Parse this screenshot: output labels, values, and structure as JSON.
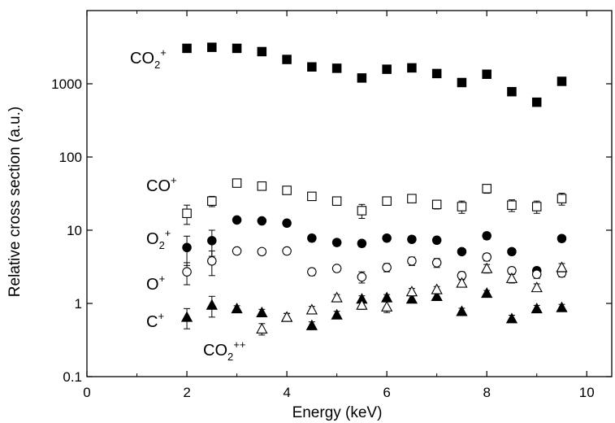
{
  "chart_data": {
    "type": "scatter",
    "xlabel": "Energy (keV)",
    "ylabel": "Relative cross section (a.u.)",
    "xlim": [
      0,
      10.5
    ],
    "ylim": [
      0.1,
      10000
    ],
    "yscale": "log",
    "grid": false,
    "x_ticks": [
      0,
      2,
      4,
      6,
      8,
      10
    ],
    "y_ticks": [
      0.1,
      1,
      10,
      100,
      1000
    ],
    "x_tick_labels": [
      "0",
      "2",
      "4",
      "6",
      "8",
      "10"
    ],
    "y_tick_labels": [
      "0.1",
      "1",
      "10",
      "100",
      "1000"
    ],
    "series": [
      {
        "id": "co2p",
        "marker": "square",
        "filled": true,
        "color": "#000000",
        "label_base": "CO",
        "label_sub": "2",
        "label_sup": "+",
        "x": [
          2,
          2.5,
          3,
          3.5,
          4,
          4.5,
          5,
          5.5,
          6,
          6.5,
          7,
          7.5,
          8,
          8.5,
          9,
          9.5
        ],
        "y": [
          3050,
          3150,
          3050,
          2750,
          2150,
          1700,
          1630,
          1200,
          1580,
          1650,
          1380,
          1040,
          1350,
          780,
          560,
          1080
        ],
        "err": [
          0,
          0,
          0,
          0,
          0,
          0,
          0,
          0,
          0,
          0,
          0,
          0,
          0,
          0,
          0,
          0
        ]
      },
      {
        "id": "cop",
        "marker": "square",
        "filled": false,
        "color": "#000000",
        "label_base": "CO",
        "label_sub": "",
        "label_sup": "+",
        "x": [
          2,
          2.5,
          3,
          3.5,
          4,
          4.5,
          5,
          5.5,
          6,
          6.5,
          7,
          7.5,
          8,
          8.5,
          9,
          9.5
        ],
        "y": [
          17,
          25,
          44,
          40,
          35,
          29,
          25,
          18.5,
          25,
          27,
          22.5,
          21,
          37,
          22,
          21,
          27
        ],
        "err": [
          5,
          4,
          4,
          3,
          4,
          3,
          3,
          4,
          3,
          3,
          3,
          4,
          5,
          4,
          4,
          5
        ]
      },
      {
        "id": "o2p",
        "marker": "circle",
        "filled": true,
        "color": "#000000",
        "label_base": "O",
        "label_sub": "2",
        "label_sup": "+",
        "x": [
          2,
          2.5,
          3,
          3.5,
          4,
          4.5,
          5,
          5.5,
          6,
          6.5,
          7,
          7.5,
          8,
          8.5,
          9,
          9.5
        ],
        "y": [
          5.8,
          7.2,
          13.8,
          13.4,
          12.5,
          7.8,
          6.8,
          6.6,
          7.8,
          7.5,
          7.3,
          5.1,
          8.4,
          5.1,
          2.8,
          7.7
        ],
        "err": [
          2.5,
          2.8,
          1.2,
          1.2,
          1.2,
          0.8,
          0.7,
          0.7,
          0.8,
          0.7,
          0.7,
          0.5,
          0.9,
          0.5,
          0.3,
          0.8
        ]
      },
      {
        "id": "op",
        "marker": "circle",
        "filled": false,
        "color": "#000000",
        "label_base": "O",
        "label_sub": "",
        "label_sup": "+",
        "x": [
          2,
          2.5,
          3,
          3.5,
          4,
          4.5,
          5,
          5.5,
          6,
          6.5,
          7,
          7.5,
          8,
          8.5,
          9,
          9.5
        ],
        "y": [
          2.7,
          3.8,
          5.2,
          5.1,
          5.2,
          2.7,
          3.0,
          2.3,
          3.1,
          3.8,
          3.6,
          2.4,
          4.3,
          2.8,
          2.5,
          2.6
        ],
        "err": [
          0.9,
          1.4,
          0.5,
          0.5,
          0.5,
          0.3,
          0.3,
          0.4,
          0.4,
          0.5,
          0.5,
          0.3,
          0.5,
          0.3,
          0.3,
          0.3
        ]
      },
      {
        "id": "cp",
        "marker": "triangle",
        "filled": true,
        "color": "#000000",
        "label_base": "C",
        "label_sub": "",
        "label_sup": "+",
        "x": [
          2,
          2.5,
          3,
          3.5,
          4,
          4.5,
          5,
          5.5,
          6,
          6.5,
          7,
          7.5,
          8,
          8.5,
          9,
          9.5
        ],
        "y": [
          0.65,
          0.95,
          0.85,
          0.75,
          0.65,
          0.5,
          0.7,
          1.15,
          1.2,
          1.15,
          1.25,
          0.78,
          1.38,
          0.62,
          0.85,
          0.88
        ],
        "err": [
          0.2,
          0.3,
          0.08,
          0.08,
          0.08,
          0.06,
          0.08,
          0.12,
          0.12,
          0.12,
          0.13,
          0.08,
          0.12,
          0.07,
          0.09,
          0.09
        ]
      },
      {
        "id": "co2pp",
        "marker": "triangle",
        "filled": false,
        "color": "#000000",
        "label_base": "CO",
        "label_sub": "2",
        "label_sup": "++",
        "x": [
          3.5,
          4,
          4.5,
          5,
          5.5,
          6,
          6.5,
          7,
          7.5,
          8,
          8.5,
          9,
          9.5
        ],
        "y": [
          0.45,
          0.65,
          0.82,
          1.2,
          0.95,
          0.9,
          1.45,
          1.55,
          1.9,
          3.0,
          2.2,
          1.65,
          3.1
        ],
        "err": [
          0.08,
          0.08,
          0.09,
          0.12,
          0.12,
          0.15,
          0.15,
          0.15,
          0.2,
          0.4,
          0.3,
          0.2,
          0.4
        ]
      }
    ]
  }
}
